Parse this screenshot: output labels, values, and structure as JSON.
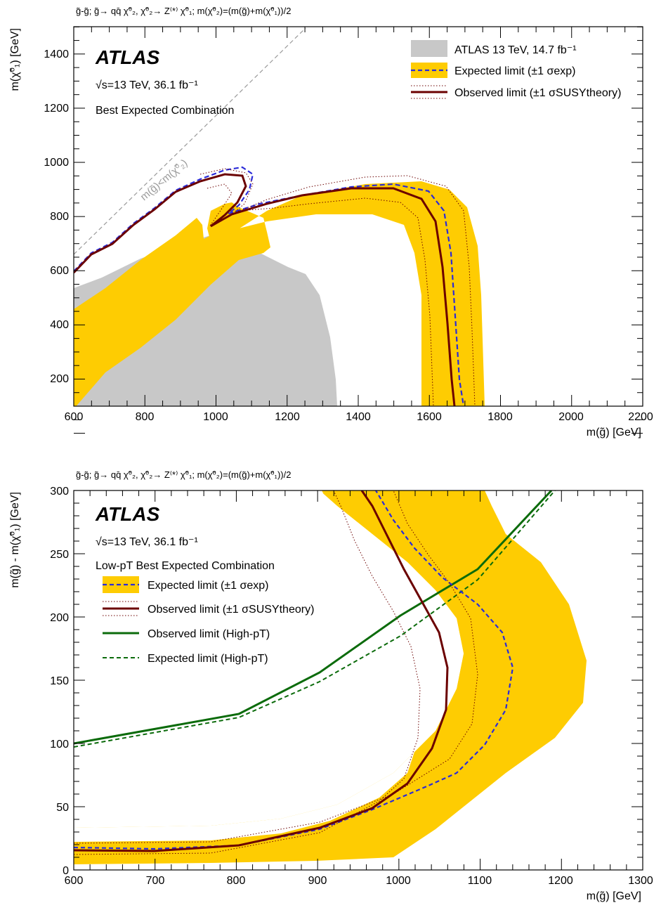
{
  "chart_data": [
    {
      "type": "line",
      "title": "g̃-g̃; g̃→ qq̄ χ̃⁰₂, χ̃⁰₂→ Z⁽*⁾ χ̃⁰₁; m(χ̃⁰₂)=(m(g̃)+m(χ̃⁰₁))/2",
      "xlabel": "m(g̃) [GeV]",
      "ylabel": "m(χ̃⁰₁) [GeV]",
      "xlim": [
        600,
        2200
      ],
      "ylim": [
        100,
        1500
      ],
      "xticks": [
        "600",
        "800",
        "1000",
        "1200",
        "1400",
        "1600",
        "1800",
        "2000",
        "2200"
      ],
      "yticks": [
        "200",
        "400",
        "600",
        "800",
        "1000",
        "1200",
        "1400"
      ],
      "atlas": "ATLAS",
      "energy": "√s=13 TeV, 36.1 fb⁻¹",
      "subtitle": "Best Expected Combination",
      "diagonal_label": "m(g̃)<m(χ̃⁰₂)",
      "legend_position": "top-right",
      "legend": [
        {
          "label": "ATLAS 13 TeV, 14.7 fb⁻¹",
          "style": "grey-fill"
        },
        {
          "label": "Expected limit (±1 σexp)",
          "style": "yellow-band-blue-dash"
        },
        {
          "label": "Observed limit (±1 σSUSYtheory)",
          "style": "red-solid-dotted"
        }
      ],
      "colors": {
        "band": "#fecc02",
        "expected": "#2b2bd8",
        "observed": "#6b0000",
        "previous": "#c8c8c8",
        "diagonal": "#9a9a9a"
      },
      "series": [
        {
          "name": "ATLAS 13 TeV, 14.7 fb⁻¹",
          "kind": "area",
          "points": [
            [
              600,
              100
            ],
            [
              600,
              520
            ],
            [
              680,
              550
            ],
            [
              760,
              610
            ],
            [
              840,
              660
            ],
            [
              930,
              690
            ],
            [
              990,
              750
            ],
            [
              1010,
              740
            ],
            [
              1080,
              690
            ],
            [
              1160,
              660
            ],
            [
              1230,
              640
            ],
            [
              1270,
              600
            ],
            [
              1310,
              470
            ],
            [
              1335,
              300
            ],
            [
              1340,
              100
            ]
          ]
        },
        {
          "name": "Expected limit (±1 σexp)",
          "kind": "line",
          "points": [
            [
              600,
              590
            ],
            [
              650,
              665
            ],
            [
              700,
              715
            ],
            [
              780,
              790
            ],
            [
              840,
              850
            ],
            [
              900,
              910
            ],
            [
              940,
              950
            ],
            [
              990,
              958
            ],
            [
              1020,
              935
            ],
            [
              1050,
              880
            ],
            [
              1090,
              840
            ],
            [
              1200,
              880
            ],
            [
              1350,
              910
            ],
            [
              1450,
              915
            ],
            [
              1560,
              880
            ],
            [
              1620,
              780
            ],
            [
              1640,
              600
            ],
            [
              1655,
              350
            ],
            [
              1665,
              100
            ]
          ]
        },
        {
          "name": "Observed limit (±1 σSUSYtheory)",
          "kind": "line",
          "points": [
            [
              600,
              585
            ],
            [
              650,
              660
            ],
            [
              700,
              712
            ],
            [
              780,
              788
            ],
            [
              840,
              848
            ],
            [
              900,
              905
            ],
            [
              945,
              935
            ],
            [
              990,
              930
            ],
            [
              1010,
              880
            ],
            [
              1040,
              830
            ],
            [
              1080,
              840
            ],
            [
              1200,
              870
            ],
            [
              1340,
              905
            ],
            [
              1440,
              915
            ],
            [
              1540,
              885
            ],
            [
              1600,
              800
            ],
            [
              1625,
              600
            ],
            [
              1640,
              350
            ],
            [
              1655,
              100
            ]
          ]
        }
      ]
    },
    {
      "type": "line",
      "title": "g̃-g̃; g̃→ qq̄ χ̃⁰₂, χ̃⁰₂→ Z⁽*⁾ χ̃⁰₁; m(χ̃⁰₂)=(m(g̃)+m(χ̃⁰₁))/2",
      "xlabel": "m(g̃) [GeV]",
      "ylabel": "m(g̃) - m(χ̃⁰₁) [GeV]",
      "xlim": [
        600,
        1300
      ],
      "ylim": [
        0,
        300
      ],
      "xticks": [
        "600",
        "700",
        "800",
        "900",
        "1000",
        "1100",
        "1200",
        "1300"
      ],
      "yticks": [
        "0",
        "50",
        "100",
        "150",
        "200",
        "250",
        "300"
      ],
      "atlas": "ATLAS",
      "energy": "√s=13 TeV, 36.1 fb⁻¹",
      "subtitle": "Low-pT Best Expected Combination",
      "legend_position": "top-left",
      "legend": [
        {
          "label": "Expected limit (±1 σexp)",
          "style": "yellow-band-blue-dash"
        },
        {
          "label": "Observed limit (±1 σSUSYtheory)",
          "style": "red-solid-dotted"
        },
        {
          "label": "Observed limit (High-pT)",
          "style": "green-solid"
        },
        {
          "label": "Expected limit (High-pT)",
          "style": "green-dash"
        }
      ],
      "colors": {
        "band": "#fecc02",
        "expected": "#2b2bd8",
        "observed": "#6b0000",
        "high_pt": "#0b6b0b"
      },
      "series": [
        {
          "name": "Expected limit (±1 σexp)",
          "kind": "line",
          "points": [
            [
              600,
              19
            ],
            [
              700,
              18
            ],
            [
              800,
              20
            ],
            [
              900,
              33
            ],
            [
              1000,
              52
            ],
            [
              1060,
              68
            ],
            [
              1100,
              90
            ],
            [
              1130,
              115
            ],
            [
              1140,
              145
            ],
            [
              1130,
              170
            ],
            [
              1100,
              190
            ],
            [
              1060,
              205
            ],
            [
              1030,
              225
            ],
            [
              1000,
              250
            ],
            [
              970,
              275
            ],
            [
              950,
              300
            ]
          ]
        },
        {
          "name": "Observed limit (±1 σSUSYtheory)",
          "kind": "line",
          "points": [
            [
              600,
              17
            ],
            [
              700,
              16
            ],
            [
              800,
              20
            ],
            [
              900,
              35
            ],
            [
              980,
              60
            ],
            [
              1030,
              80
            ],
            [
              1055,
              100
            ],
            [
              1058,
              130
            ],
            [
              1045,
              160
            ],
            [
              1020,
              190
            ],
            [
              995,
              220
            ],
            [
              975,
              250
            ],
            [
              960,
              275
            ],
            [
              945,
              300
            ]
          ]
        },
        {
          "name": "Observed limit (High-pT)",
          "kind": "line",
          "points": [
            [
              600,
              100
            ],
            [
              800,
              135
            ],
            [
              900,
              173
            ],
            [
              1000,
              210
            ],
            [
              1100,
              250
            ],
            [
              1200,
              300
            ]
          ]
        },
        {
          "name": "Expected limit (High-pT)",
          "kind": "line",
          "points": [
            [
              600,
              98
            ],
            [
              800,
              131
            ],
            [
              900,
              165
            ],
            [
              1000,
              200
            ],
            [
              1100,
              245
            ],
            [
              1205,
              300
            ]
          ]
        }
      ]
    }
  ]
}
